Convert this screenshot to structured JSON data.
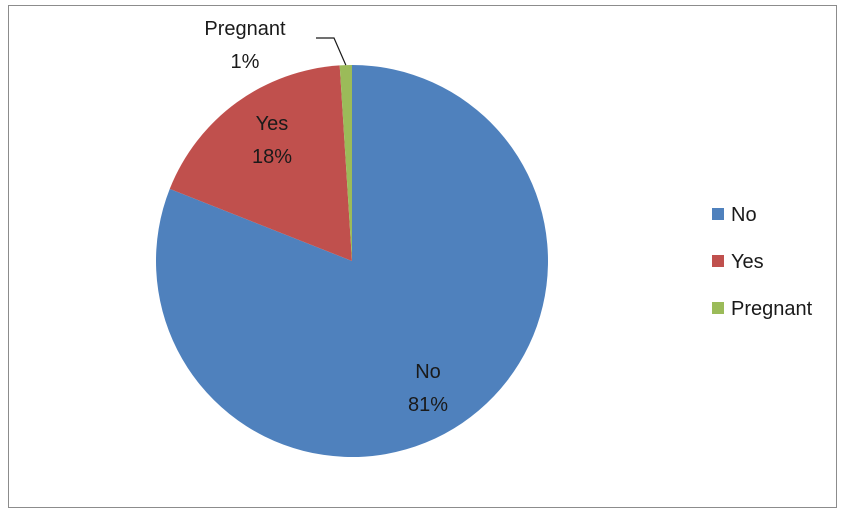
{
  "chart_data": {
    "type": "pie",
    "title": "",
    "categories": [
      "No",
      "Yes",
      "Pregnant"
    ],
    "values": [
      81,
      18,
      1
    ],
    "value_labels": [
      "81%",
      "18%",
      "1%"
    ],
    "colors": [
      "#4f81bd",
      "#c0504d",
      "#9bbb59"
    ],
    "legend": {
      "placement": "right",
      "entries": [
        "No",
        "Yes",
        "Pregnant"
      ]
    },
    "start_angle_deg": 0,
    "direction": "clockwise",
    "data_labels_shown": true
  }
}
